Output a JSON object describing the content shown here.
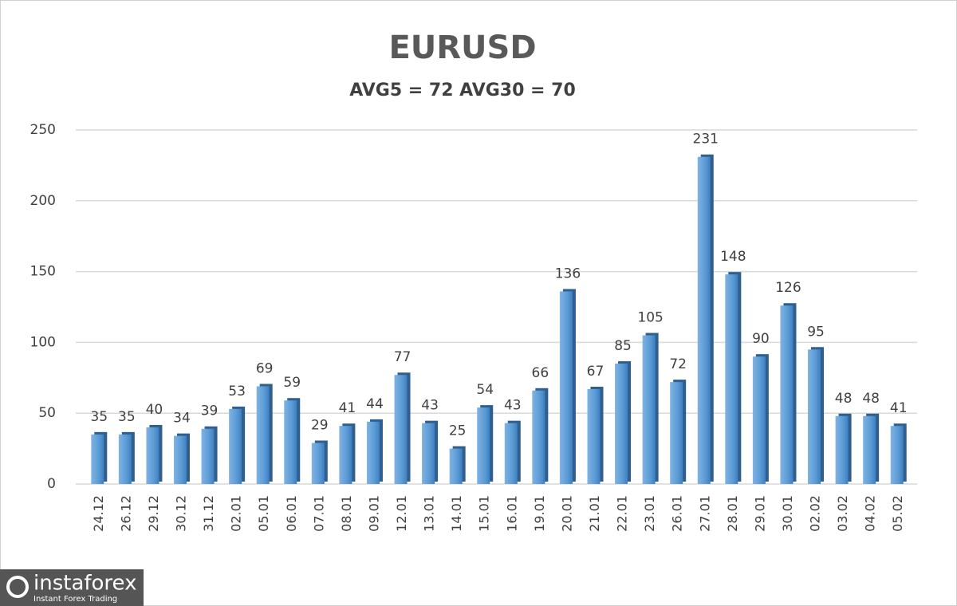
{
  "chart_data": {
    "type": "bar",
    "title": "EURUSD",
    "subtitle": "AVG5 = 72 AVG30 = 70",
    "categories": [
      "24.12",
      "26.12",
      "29.12",
      "30.12",
      "31.12",
      "02.01",
      "05.01",
      "06.01",
      "07.01",
      "08.01",
      "09.01",
      "12.01",
      "13.01",
      "14.01",
      "15.01",
      "16.01",
      "19.01",
      "20.01",
      "21.01",
      "22.01",
      "23.01",
      "26.01",
      "27.01",
      "28.01",
      "29.01",
      "30.01",
      "02.02",
      "03.02",
      "04.02",
      "05.02"
    ],
    "values": [
      35,
      35,
      40,
      34,
      39,
      53,
      69,
      59,
      29,
      41,
      44,
      77,
      43,
      25,
      54,
      43,
      66,
      136,
      67,
      85,
      105,
      72,
      231,
      148,
      90,
      126,
      95,
      48,
      48,
      41
    ],
    "color": "#5b9bd5",
    "ylim": [
      0,
      250
    ],
    "yticks": [
      0,
      50,
      100,
      150,
      200,
      250
    ],
    "grid": true
  },
  "logo": {
    "name": "instaforex",
    "tagline": "Instant Forex Trading"
  }
}
